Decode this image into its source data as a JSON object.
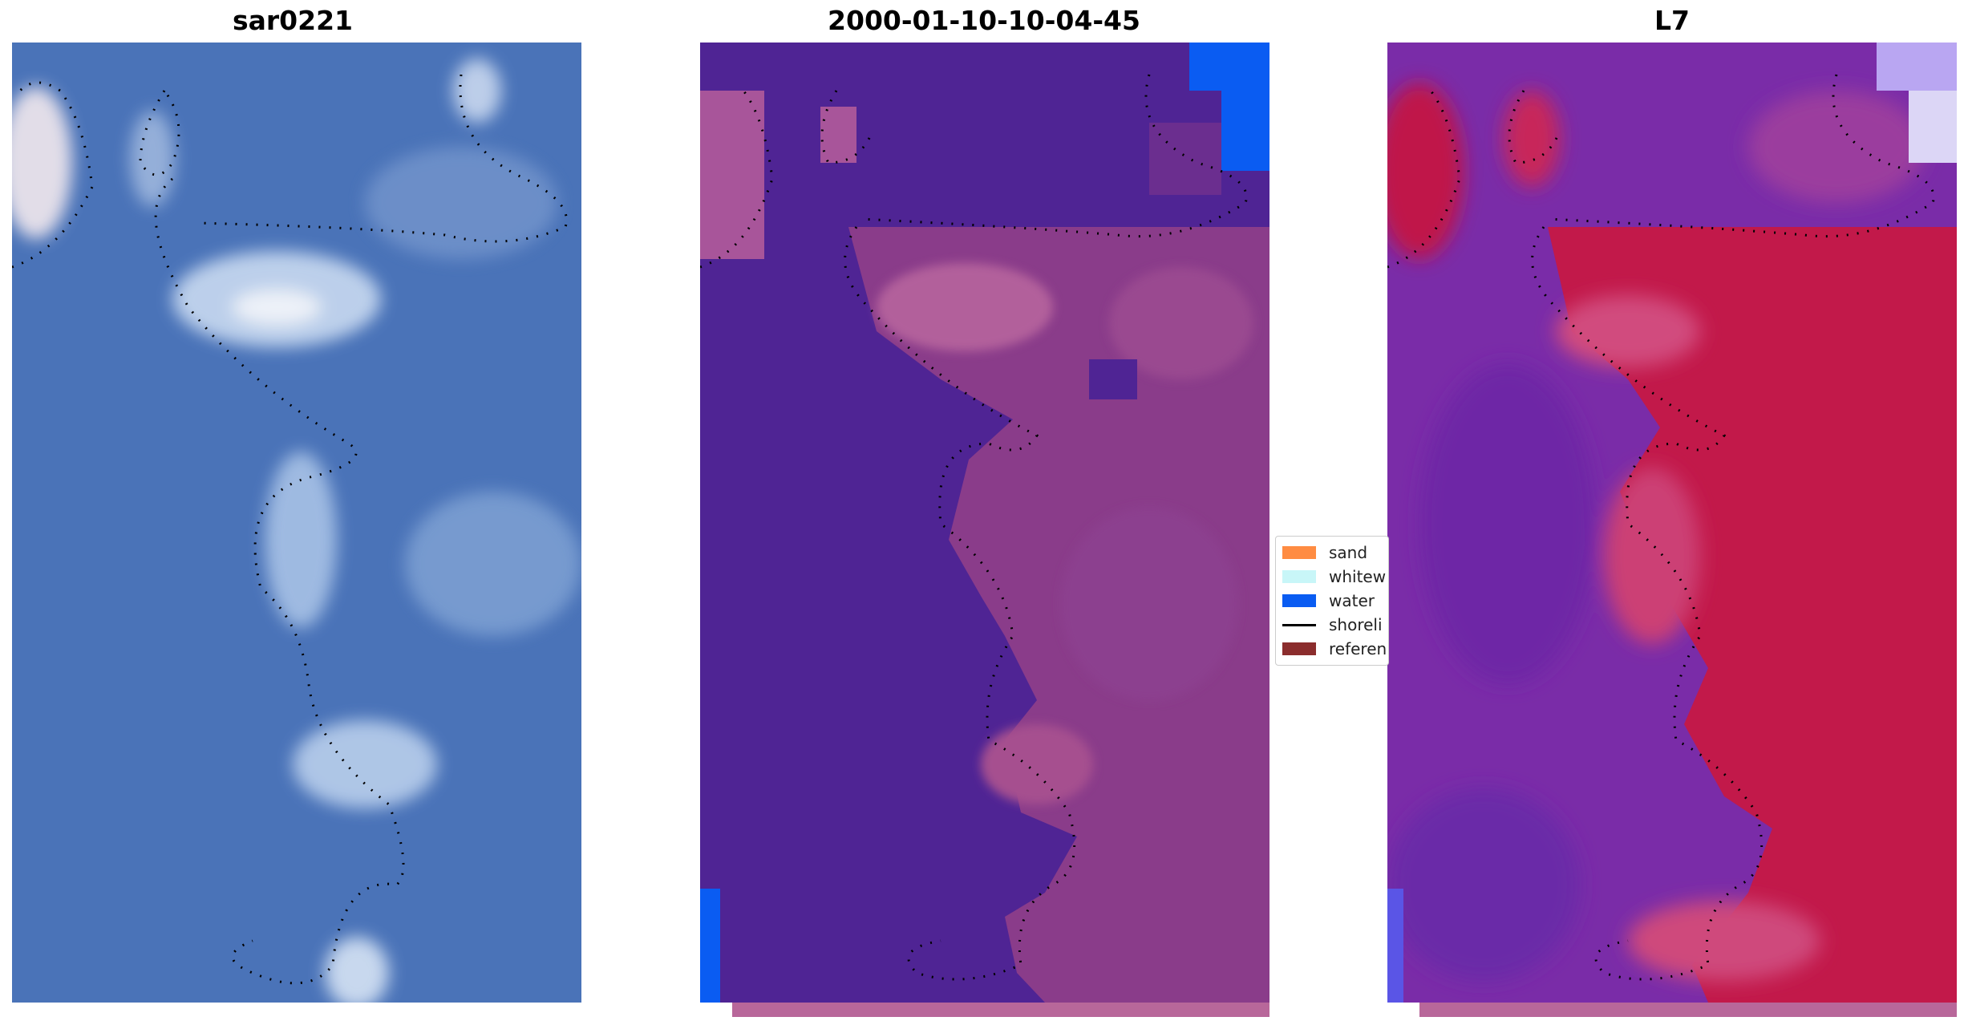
{
  "panels": [
    {
      "title": "sar0221"
    },
    {
      "title": "2000-01-10-10-04-45"
    },
    {
      "title": "L7"
    }
  ],
  "legend": {
    "items": [
      {
        "label": "sand",
        "color": "#ff8c42",
        "kind": "patch"
      },
      {
        "label": "whitew",
        "color": "#c8f6f8",
        "kind": "patch"
      },
      {
        "label": "water",
        "color": "#0a5cf2",
        "kind": "patch"
      },
      {
        "label": "shoreli",
        "color": "#000000",
        "kind": "line"
      },
      {
        "label": "referen",
        "color": "#8b2d2d",
        "kind": "patch"
      }
    ]
  },
  "colors": {
    "rgb_water": "#4a73b8",
    "rgb_foam": "#e6ecf5",
    "classified_water": "#4f2494",
    "classified_land": "#8a3c8a",
    "swir_land": "#c2194a",
    "swir_water": "#7a2ca8",
    "reference_strip": "#b8679a",
    "shoreline": "#000000"
  }
}
